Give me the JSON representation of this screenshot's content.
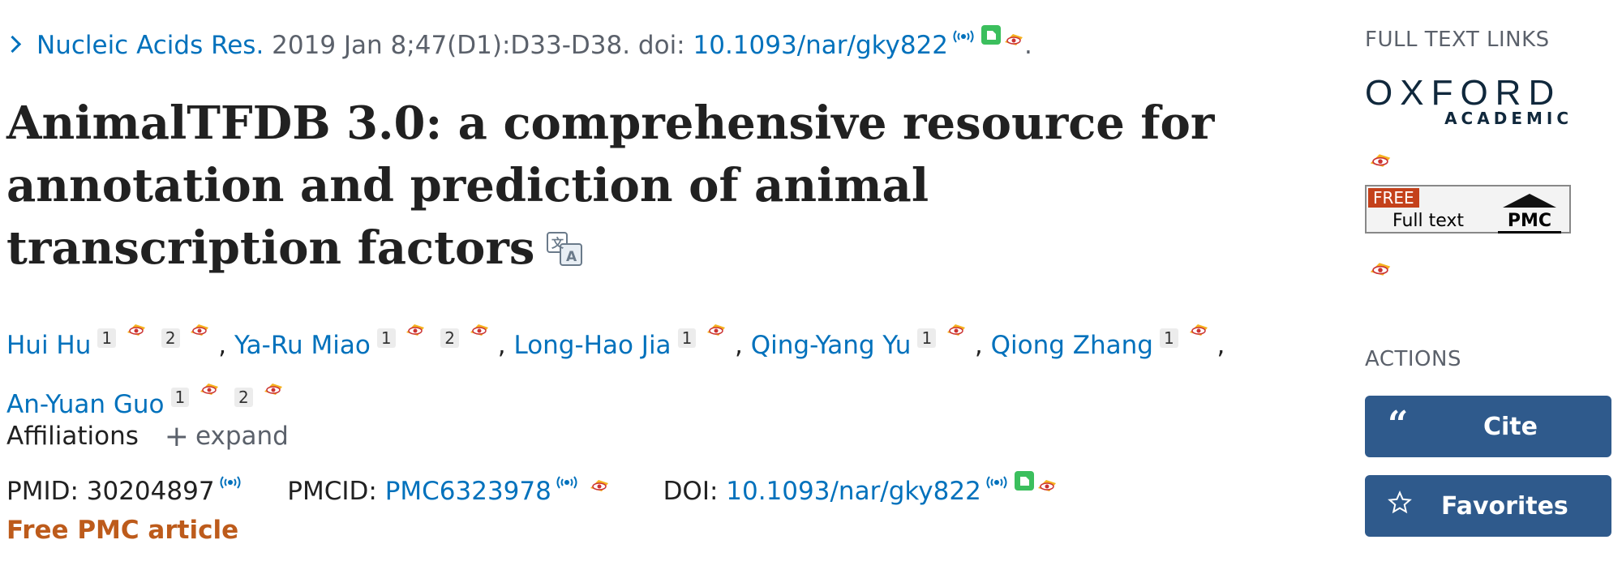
{
  "citation": {
    "journal": "Nucleic Acids Res.",
    "details": "2019 Jan 8;47(D1):D33-D38. doi:",
    "doi": "10.1093/nar/gky822",
    "end": "."
  },
  "article": {
    "title": "AnimalTFDB 3.0: a comprehensive resource for annotation and prediction of animal transcription factors"
  },
  "authors": [
    {
      "name": "Hui Hu",
      "affils": [
        "1",
        "2"
      ],
      "sep": ","
    },
    {
      "name": "Ya-Ru Miao",
      "affils": [
        "1",
        "2"
      ],
      "sep": ","
    },
    {
      "name": "Long-Hao Jia",
      "affils": [
        "1"
      ],
      "sep": ","
    },
    {
      "name": "Qing-Yang Yu",
      "affils": [
        "1"
      ],
      "sep": ","
    },
    {
      "name": "Qiong Zhang",
      "affils": [
        "1"
      ],
      "sep": ","
    },
    {
      "name": "An-Yuan Guo",
      "affils": [
        "1",
        "2"
      ],
      "sep": ""
    }
  ],
  "affiliations": {
    "label": "Affiliations",
    "expand_label": "expand"
  },
  "identifiers": {
    "pmid_label": "PMID:",
    "pmid": "30204897",
    "pmcid_label": "PMCID:",
    "pmcid": "PMC6323978",
    "doi_label": "DOI:",
    "doi": "10.1093/nar/gky822"
  },
  "free_pmc": "Free PMC article",
  "sidebar": {
    "full_text_heading": "FULL TEXT LINKS",
    "oxford_word": "OXFORD",
    "oxford_sub": "ACADEMIC",
    "pmc_free": "FREE",
    "pmc_fulltext": "Full text",
    "pmc_logo": "PMC",
    "actions_heading": "ACTIONS",
    "cite_label": "Cite",
    "favorites_label": "Favorites"
  },
  "icons": {
    "eye": "eye-extension-icon",
    "broadcast": "broadcast-icon",
    "green": "green-document-icon",
    "translate": "translate-icon"
  },
  "colors": {
    "link": "#0071bc",
    "free_pmc": "#bd5b1b",
    "button": "#2f5a8c"
  }
}
